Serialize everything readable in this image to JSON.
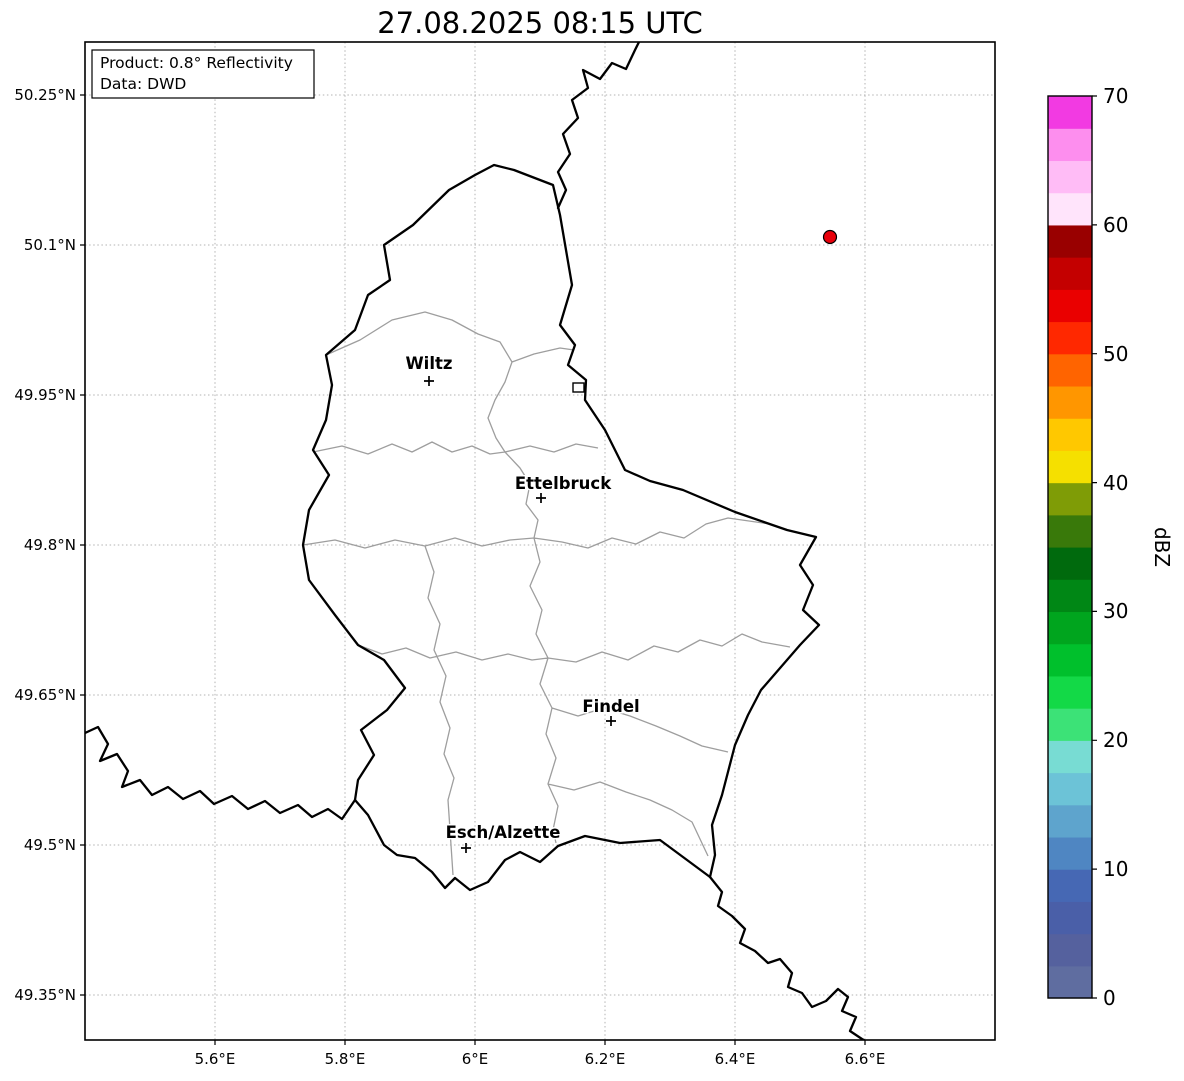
{
  "title": "27.08.2025 08:15 UTC",
  "info_box": {
    "line1": "Product: 0.8° Reflectivity",
    "line2": "Data: DWD"
  },
  "axes": {
    "y_ticks": [
      "50.25°N",
      "50.1°N",
      "49.95°N",
      "49.8°N",
      "49.65°N",
      "49.5°N",
      "49.35°N"
    ],
    "x_ticks": [
      "5.6°E",
      "5.8°E",
      "6°E",
      "6.2°E",
      "6.4°E",
      "6.6°E"
    ]
  },
  "map": {
    "cities": [
      {
        "name": "Wiltz"
      },
      {
        "name": "Ettelbruck"
      },
      {
        "name": "Findel"
      },
      {
        "name": "Esch/Alzette"
      }
    ],
    "radar_dot_color": "#e8000b"
  },
  "colorbar": {
    "label": "dBZ",
    "ticks": [
      "0",
      "10",
      "20",
      "30",
      "40",
      "50",
      "60",
      "70"
    ],
    "colors": [
      "#5f6da0",
      "#55619e",
      "#4a5fa8",
      "#4668b4",
      "#4f86c2",
      "#5ea4cd",
      "#6cc3d7",
      "#78dcd3",
      "#3ce277",
      "#13d947",
      "#00c02c",
      "#00a51e",
      "#008715",
      "#006a0d",
      "#39790a",
      "#7f9c06",
      "#f5e000",
      "#ffc800",
      "#ff9600",
      "#ff6400",
      "#ff2800",
      "#ea0000",
      "#c40000",
      "#990000",
      "#ffe4fb",
      "#ffbcf6",
      "#fd8eee",
      "#f23ae2"
    ]
  }
}
